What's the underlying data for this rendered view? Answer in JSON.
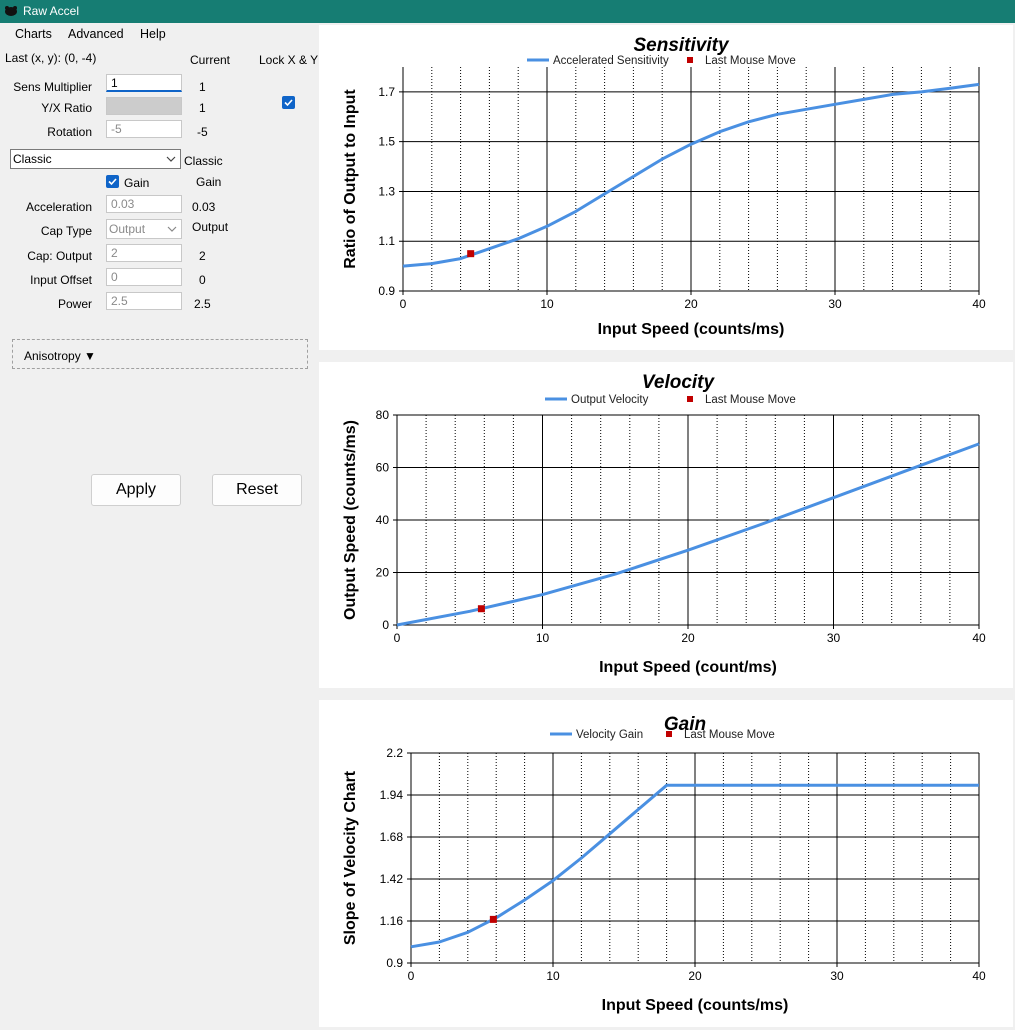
{
  "window": {
    "title": "Raw Accel"
  },
  "menu": [
    "Charts",
    "Advanced",
    "Help"
  ],
  "settings": {
    "last_xy": "Last (x, y): (0, -4)",
    "current_header": "Current",
    "lock_label": "Lock X & Y",
    "lock_checked": true,
    "sens_label": "Sens Multiplier",
    "sens_value": "1",
    "sens_current": "1",
    "yx_label": "Y/X Ratio",
    "yx_current": "1",
    "rotation_label": "Rotation",
    "rotation_value": "-5",
    "rotation_current": "-5",
    "accel_type": "Classic",
    "accel_type_current": "Classic",
    "gain_label": "Gain",
    "gain_checked": true,
    "gain_current": "Gain",
    "acceleration_label": "Acceleration",
    "acceleration_value": "0.03",
    "acceleration_current": "0.03",
    "cap_type_label": "Cap Type",
    "cap_type_value": "Output",
    "cap_type_current": "Output",
    "cap_output_label": "Cap: Output",
    "cap_output_value": "2",
    "cap_output_current": "2",
    "input_offset_label": "Input Offset",
    "input_offset_value": "0",
    "input_offset_current": "0",
    "power_label": "Power",
    "power_value": "2.5",
    "power_current": "2.5",
    "anisotropy_label": "Anisotropy ▼"
  },
  "buttons": {
    "apply": "Apply",
    "reset": "Reset"
  },
  "colors": {
    "titlebar": "#167d73",
    "series": "#4a90e2",
    "marker": "#c00000"
  },
  "chart_data": [
    {
      "type": "line",
      "title": "Sensitivity",
      "xlabel": "Input Speed (counts/ms)",
      "ylabel": "Ratio of Output to Input",
      "xlim": [
        0,
        40
      ],
      "ylim": [
        0.9,
        1.8
      ],
      "xticks": [
        "0",
        "10",
        "20",
        "30",
        "40"
      ],
      "yticks": [
        "0.9",
        "1.1",
        "1.3",
        "1.5",
        "1.7"
      ],
      "series": [
        {
          "name": "Accelerated Sensitivity",
          "x": [
            0,
            2,
            4,
            6,
            8,
            10,
            12,
            14,
            16,
            18,
            20,
            22,
            24,
            26,
            28,
            30,
            32,
            34,
            36,
            38,
            40
          ],
          "y": [
            1.0,
            1.01,
            1.03,
            1.07,
            1.11,
            1.16,
            1.22,
            1.29,
            1.36,
            1.43,
            1.49,
            1.54,
            1.58,
            1.61,
            1.63,
            1.65,
            1.67,
            1.69,
            1.7,
            1.715,
            1.73
          ]
        },
        {
          "name": "Last Mouse Move",
          "x": [
            4.7
          ],
          "y": [
            1.05
          ]
        }
      ]
    },
    {
      "type": "line",
      "title": "Velocity",
      "xlabel": "Input Speed (count/ms)",
      "ylabel": "Output Speed (counts/ms)",
      "xlim": [
        0,
        40
      ],
      "ylim": [
        0,
        80
      ],
      "xticks": [
        "0",
        "10",
        "20",
        "30",
        "40"
      ],
      "yticks": [
        "0",
        "20",
        "40",
        "60",
        "80"
      ],
      "series": [
        {
          "name": "Output Velocity",
          "x": [
            0,
            5,
            10,
            15,
            20,
            25,
            30,
            35,
            40
          ],
          "y": [
            0,
            5.2,
            11.6,
            19.4,
            28.5,
            38.3,
            48.5,
            58.8,
            69
          ]
        },
        {
          "name": "Last Mouse Move",
          "x": [
            5.8
          ],
          "y": [
            6.2
          ]
        }
      ]
    },
    {
      "type": "line",
      "title": "Gain",
      "xlabel": "Input Speed (counts/ms)",
      "ylabel": "Slope of Velocity Chart",
      "xlim": [
        0,
        40
      ],
      "ylim": [
        0.9,
        2.2
      ],
      "xticks": [
        "0",
        "10",
        "20",
        "30",
        "40"
      ],
      "yticks": [
        "0.9",
        "1.16",
        "1.42",
        "1.68",
        "1.94",
        "2.2"
      ],
      "series": [
        {
          "name": "Velocity Gain",
          "x": [
            0,
            2,
            4,
            6,
            8,
            10,
            12,
            14,
            16,
            18,
            20,
            25,
            30,
            35,
            40
          ],
          "y": [
            1.0,
            1.03,
            1.09,
            1.18,
            1.29,
            1.41,
            1.55,
            1.7,
            1.85,
            2.0,
            2.0,
            2.0,
            2.0,
            2.0,
            2.0
          ]
        },
        {
          "name": "Last Mouse Move",
          "x": [
            5.8
          ],
          "y": [
            1.17
          ]
        }
      ]
    }
  ]
}
